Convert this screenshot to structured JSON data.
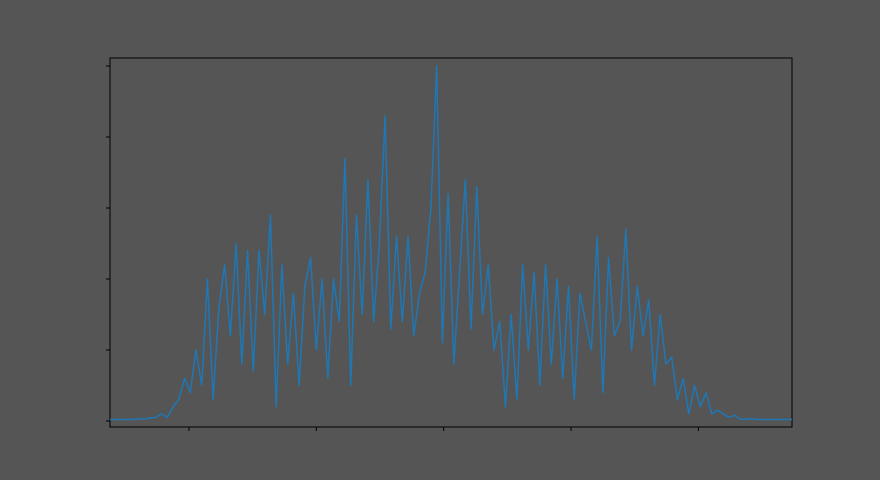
{
  "chart_data": {
    "type": "line",
    "x": [
      76,
      85,
      94,
      103,
      112,
      121,
      130,
      139,
      148,
      157,
      166,
      175,
      184,
      193,
      202,
      211,
      220,
      229,
      238,
      247,
      256,
      265,
      274,
      283,
      292,
      301,
      310,
      319,
      328,
      337,
      346,
      355,
      364,
      373,
      382,
      391,
      400,
      409,
      418,
      427,
      436,
      445,
      454,
      463,
      472,
      481,
      490,
      499,
      508,
      517,
      526,
      535,
      544,
      553,
      562,
      571,
      580,
      589,
      598,
      607,
      616,
      625,
      634,
      643,
      652,
      661,
      670,
      679,
      688,
      697,
      706,
      715,
      724,
      733,
      742,
      751,
      760,
      769,
      778,
      787,
      796,
      805,
      814,
      823,
      832,
      841,
      850,
      859,
      868,
      877,
      886,
      895,
      904,
      913,
      922,
      931,
      940,
      949,
      958,
      967,
      976,
      985,
      994,
      1003,
      1012,
      1021,
      1030,
      1039,
      1048,
      1057,
      1066,
      1075,
      1084,
      1093,
      1102,
      1111,
      1120,
      1129,
      1138,
      1147
    ],
    "series": [
      {
        "color": "#1f77b4",
        "values": [
          0.02,
          0.02,
          0.02,
          0.02,
          0.02,
          0.03,
          0.03,
          0.04,
          0.05,
          0.1,
          0.05,
          0.2,
          0.3,
          0.6,
          0.4,
          1.0,
          0.5,
          2.0,
          0.3,
          1.6,
          2.2,
          1.2,
          2.5,
          0.8,
          2.4,
          0.7,
          2.4,
          1.5,
          2.9,
          0.2,
          2.2,
          0.8,
          1.8,
          0.5,
          1.9,
          2.3,
          1.0,
          2.0,
          0.6,
          2.0,
          1.4,
          3.7,
          0.5,
          2.9,
          1.5,
          3.4,
          1.4,
          2.5,
          4.3,
          1.3,
          2.6,
          1.4,
          2.6,
          1.2,
          1.8,
          2.1,
          3.0,
          5.0,
          1.1,
          3.2,
          0.8,
          2.1,
          3.4,
          1.3,
          3.3,
          1.5,
          2.2,
          1.0,
          1.4,
          0.2,
          1.5,
          0.3,
          2.2,
          1.0,
          2.1,
          0.5,
          2.2,
          0.8,
          2.0,
          0.6,
          1.9,
          0.3,
          1.8,
          1.4,
          1.0,
          2.6,
          0.4,
          2.3,
          1.2,
          1.4,
          2.7,
          1.0,
          1.9,
          1.2,
          1.7,
          0.5,
          1.5,
          0.8,
          0.9,
          0.3,
          0.6,
          0.1,
          0.5,
          0.2,
          0.4,
          0.1,
          0.15,
          0.1,
          0.05,
          0.08,
          0.02,
          0.03,
          0.03,
          0.02,
          0.02,
          0.02,
          0.02,
          0.02,
          0.02,
          0.02
        ]
      }
    ],
    "xlim": [
      76,
      1147
    ],
    "xticks": [
      200,
      400,
      600,
      800,
      1000
    ],
    "ylim": [
      -0.085,
      5.113
    ],
    "yticks": [
      0,
      1,
      2,
      3,
      4,
      5
    ]
  }
}
